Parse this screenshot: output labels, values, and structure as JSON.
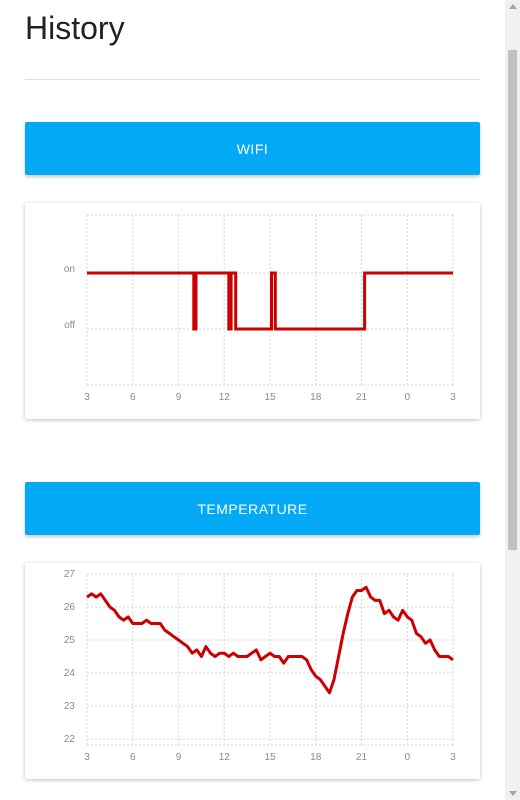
{
  "page": {
    "title": "History"
  },
  "sections": {
    "wifi_label": "WIFI",
    "temperature_label": "TEMPERATURE"
  },
  "colors": {
    "accent": "#03a9f4",
    "series": "#cc0000"
  },
  "scrollbar": {
    "position_fraction": 0.0
  },
  "chart_data": [
    {
      "type": "line",
      "step": true,
      "title": "",
      "xlabel": "",
      "ylabel": "",
      "x_ticks": [
        "3",
        "6",
        "9",
        "12",
        "15",
        "18",
        "21",
        "0",
        "3"
      ],
      "y_categories": [
        "off",
        "on"
      ],
      "grid": true,
      "series": [
        {
          "x": [
            0,
            7.0,
            7.0,
            7.15,
            7.15,
            9.3,
            9.3,
            9.45,
            9.45,
            9.75,
            9.75,
            12.1,
            12.1,
            12.35,
            12.35,
            13.7,
            13.7,
            18.2,
            18.2,
            24
          ],
          "y": [
            1,
            1,
            0,
            0,
            1,
            1,
            0,
            0,
            1,
            1,
            0,
            0,
            1,
            1,
            0,
            0,
            0,
            0,
            1,
            1
          ]
        }
      ]
    },
    {
      "type": "line",
      "title": "",
      "xlabel": "",
      "ylabel": "",
      "x_ticks": [
        "3",
        "6",
        "9",
        "12",
        "15",
        "18",
        "21",
        "0",
        "3"
      ],
      "y_ticks": [
        "22",
        "23",
        "24",
        "25",
        "26",
        "27"
      ],
      "ylim": [
        22,
        27
      ],
      "grid": true,
      "series": [
        {
          "x": [
            0,
            0.3,
            0.6,
            0.9,
            1.2,
            1.5,
            1.8,
            2.1,
            2.4,
            2.7,
            3.0,
            3.3,
            3.6,
            3.9,
            4.2,
            4.5,
            4.8,
            5.1,
            5.4,
            5.7,
            6.0,
            6.3,
            6.6,
            6.9,
            7.2,
            7.5,
            7.8,
            8.1,
            8.4,
            8.7,
            9.0,
            9.3,
            9.6,
            9.9,
            10.2,
            10.5,
            10.8,
            11.1,
            11.4,
            11.7,
            12.0,
            12.3,
            12.6,
            12.9,
            13.2,
            13.5,
            13.8,
            14.1,
            14.4,
            14.7,
            15.0,
            15.3,
            15.6,
            15.9,
            16.2,
            16.5,
            16.8,
            17.1,
            17.4,
            17.7,
            18.0,
            18.3,
            18.6,
            18.9,
            19.2,
            19.5,
            19.8,
            20.1,
            20.4,
            20.7,
            21.0,
            21.3,
            21.6,
            21.9,
            22.2,
            22.5,
            22.8,
            23.1,
            23.4,
            23.7,
            24.0
          ],
          "y": [
            26.3,
            26.4,
            26.3,
            26.4,
            26.2,
            26.0,
            25.9,
            25.7,
            25.6,
            25.7,
            25.5,
            25.5,
            25.5,
            25.6,
            25.5,
            25.5,
            25.5,
            25.3,
            25.2,
            25.1,
            25.0,
            24.9,
            24.8,
            24.6,
            24.7,
            24.5,
            24.8,
            24.6,
            24.5,
            24.6,
            24.6,
            24.5,
            24.6,
            24.5,
            24.5,
            24.5,
            24.6,
            24.7,
            24.4,
            24.5,
            24.6,
            24.5,
            24.5,
            24.3,
            24.5,
            24.5,
            24.5,
            24.5,
            24.4,
            24.1,
            23.9,
            23.8,
            23.6,
            23.4,
            23.8,
            24.5,
            25.2,
            25.8,
            26.3,
            26.5,
            26.5,
            26.6,
            26.3,
            26.2,
            26.2,
            25.8,
            25.9,
            25.7,
            25.6,
            25.9,
            25.7,
            25.6,
            25.2,
            25.1,
            24.9,
            25.0,
            24.7,
            24.5,
            24.5,
            24.5,
            24.4
          ]
        }
      ]
    }
  ]
}
